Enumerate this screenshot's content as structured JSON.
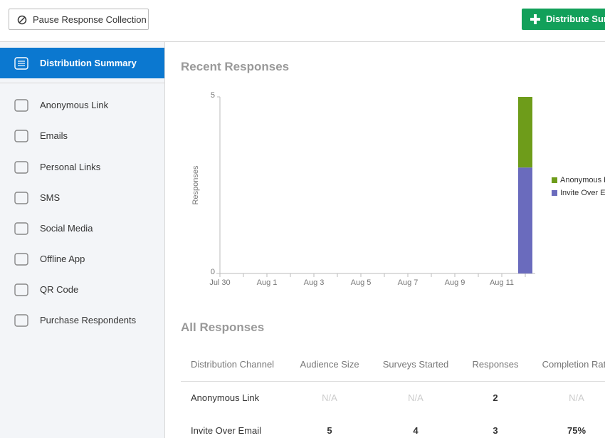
{
  "toolbar": {
    "pause_button": "Pause Response Collection",
    "distribute_button": "Distribute Survey"
  },
  "sidebar": {
    "items": [
      "Distribution Summary",
      "Anonymous Link",
      "Emails",
      "Personal Links",
      "SMS",
      "Social Media",
      "Offline App",
      "QR Code",
      "Purchase Respondents"
    ]
  },
  "chart_data": {
    "type": "bar",
    "stacked": true,
    "title": "Recent Responses",
    "ylabel": "Responses",
    "categories": [
      "Jul 30",
      null,
      "Aug 1",
      null,
      "Aug 3",
      null,
      "Aug 5",
      null,
      "Aug 7",
      null,
      "Aug 9",
      null,
      "Aug 11",
      null
    ],
    "series": [
      {
        "name": "Invite Over Email",
        "color": "#6a6bbd",
        "values": [
          0,
          0,
          0,
          0,
          0,
          0,
          0,
          0,
          0,
          0,
          0,
          0,
          0,
          3
        ]
      },
      {
        "name": "Anonymous Link",
        "color": "#6e9c1a",
        "values": [
          0,
          0,
          0,
          0,
          0,
          0,
          0,
          0,
          0,
          0,
          0,
          0,
          0,
          2
        ]
      }
    ],
    "ylim": [
      0,
      5
    ],
    "yticks": [
      0,
      5
    ],
    "grid": false,
    "legend": "right"
  },
  "table": {
    "title": "All Responses",
    "header": [
      "Distribution Channel",
      "Audience Size",
      "Surveys Started",
      "Responses",
      "Completion Rate"
    ],
    "rows": [
      [
        "Anonymous Link",
        "N/A",
        "N/A",
        "2",
        "N/A"
      ],
      [
        "Invite Over Email",
        "5",
        "4",
        "3",
        "75%"
      ]
    ]
  }
}
